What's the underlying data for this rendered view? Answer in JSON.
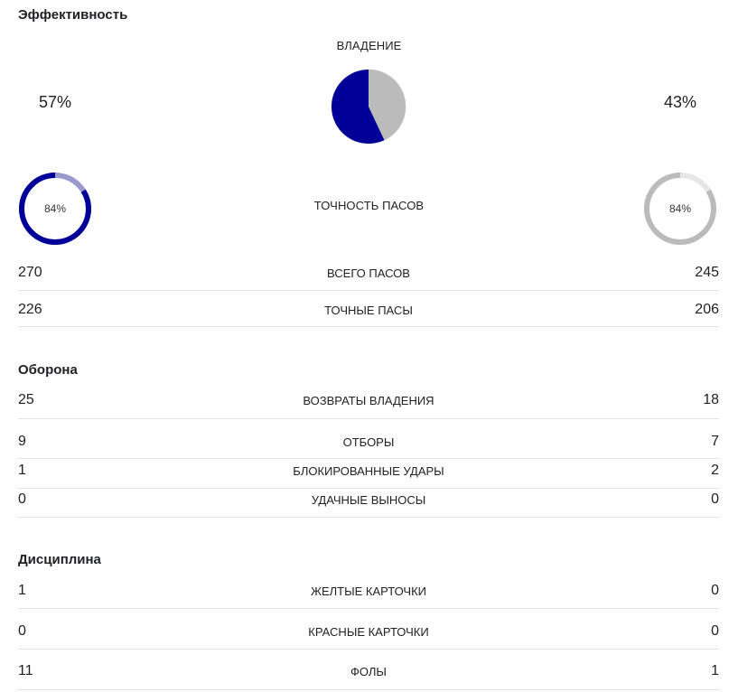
{
  "colors": {
    "home": "#000099",
    "home_light": "#9999cc",
    "away": "#bbbbbb",
    "away_light": "#e6e6e6"
  },
  "sections": {
    "efficiency": "Эффективность",
    "defense": "Оборона",
    "discipline": "Дисциплина"
  },
  "possession": {
    "label": "ВЛАДЕНИЕ",
    "home": "57%",
    "away": "43%",
    "home_value": 57,
    "away_value": 43
  },
  "pass_accuracy": {
    "label": "ТОЧНОСТЬ ПАСОВ",
    "home": "84%",
    "away": "84%",
    "home_value": 84,
    "away_value": 84
  },
  "efficiency_rows": [
    {
      "label": "ВСЕГО ПАСОВ",
      "home": "270",
      "away": "245"
    },
    {
      "label": "ТОЧНЫЕ ПАСЫ",
      "home": "226",
      "away": "206"
    }
  ],
  "defense_rows": [
    {
      "label": "ВОЗВРАТЫ ВЛАДЕНИЯ",
      "home": "25",
      "away": "18"
    },
    {
      "label": "ОТБОРЫ",
      "home": "9",
      "away": "7"
    },
    {
      "label": "БЛОКИРОВАННЫЕ УДАРЫ",
      "home": "1",
      "away": "2"
    },
    {
      "label": "УДАЧНЫЕ ВЫНОСЫ",
      "home": "0",
      "away": "0"
    }
  ],
  "discipline_rows": [
    {
      "label": "ЖЕЛТЫЕ КАРТОЧКИ",
      "home": "1",
      "away": "0"
    },
    {
      "label": "КРАСНЫЕ КАРТОЧКИ",
      "home": "0",
      "away": "0"
    },
    {
      "label": "ФОЛЫ",
      "home": "11",
      "away": "1"
    }
  ]
}
